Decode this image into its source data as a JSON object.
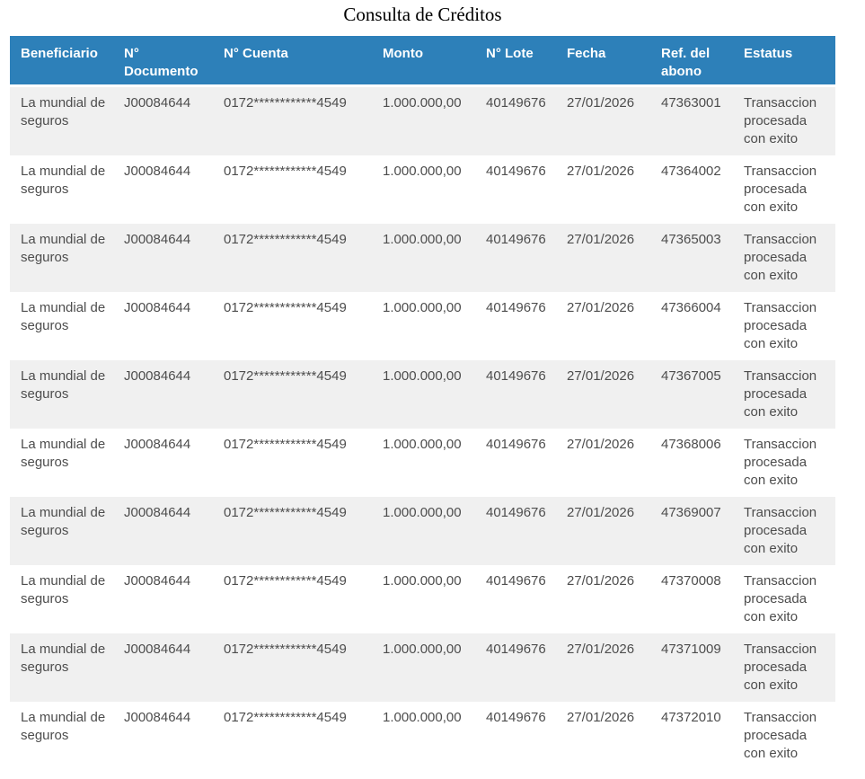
{
  "title": "Consulta de Créditos",
  "table": {
    "columns": [
      {
        "key": "beneficiario",
        "label": "Beneficiario"
      },
      {
        "key": "documento",
        "label": "N° Documento"
      },
      {
        "key": "cuenta",
        "label": "N° Cuenta"
      },
      {
        "key": "monto",
        "label": "Monto"
      },
      {
        "key": "lote",
        "label": "N° Lote"
      },
      {
        "key": "fecha",
        "label": "Fecha"
      },
      {
        "key": "ref_abono",
        "label": "Ref. del abono"
      },
      {
        "key": "estatus",
        "label": "Estatus"
      }
    ],
    "rows": [
      {
        "beneficiario": "La mundial de seguros",
        "documento": "J00084644",
        "cuenta": "0172************4549",
        "monto": "1.000.000,00",
        "lote": "40149676",
        "fecha": "27/01/2026",
        "ref_abono": "47363001",
        "estatus": "Transaccion procesada con exito"
      },
      {
        "beneficiario": "La mundial de seguros",
        "documento": "J00084644",
        "cuenta": "0172************4549",
        "monto": "1.000.000,00",
        "lote": "40149676",
        "fecha": "27/01/2026",
        "ref_abono": "47364002",
        "estatus": "Transaccion procesada con exito"
      },
      {
        "beneficiario": "La mundial de seguros",
        "documento": "J00084644",
        "cuenta": "0172************4549",
        "monto": "1.000.000,00",
        "lote": "40149676",
        "fecha": "27/01/2026",
        "ref_abono": "47365003",
        "estatus": "Transaccion procesada con exito"
      },
      {
        "beneficiario": "La mundial de seguros",
        "documento": "J00084644",
        "cuenta": "0172************4549",
        "monto": "1.000.000,00",
        "lote": "40149676",
        "fecha": "27/01/2026",
        "ref_abono": "47366004",
        "estatus": "Transaccion procesada con exito"
      },
      {
        "beneficiario": "La mundial de seguros",
        "documento": "J00084644",
        "cuenta": "0172************4549",
        "monto": "1.000.000,00",
        "lote": "40149676",
        "fecha": "27/01/2026",
        "ref_abono": "47367005",
        "estatus": "Transaccion procesada con exito"
      },
      {
        "beneficiario": "La mundial de seguros",
        "documento": "J00084644",
        "cuenta": "0172************4549",
        "monto": "1.000.000,00",
        "lote": "40149676",
        "fecha": "27/01/2026",
        "ref_abono": "47368006",
        "estatus": "Transaccion procesada con exito"
      },
      {
        "beneficiario": "La mundial de seguros",
        "documento": "J00084644",
        "cuenta": "0172************4549",
        "monto": "1.000.000,00",
        "lote": "40149676",
        "fecha": "27/01/2026",
        "ref_abono": "47369007",
        "estatus": "Transaccion procesada con exito"
      },
      {
        "beneficiario": "La mundial de seguros",
        "documento": "J00084644",
        "cuenta": "0172************4549",
        "monto": "1.000.000,00",
        "lote": "40149676",
        "fecha": "27/01/2026",
        "ref_abono": "47370008",
        "estatus": "Transaccion procesada con exito"
      },
      {
        "beneficiario": "La mundial de seguros",
        "documento": "J00084644",
        "cuenta": "0172************4549",
        "monto": "1.000.000,00",
        "lote": "40149676",
        "fecha": "27/01/2026",
        "ref_abono": "47371009",
        "estatus": "Transaccion procesada con exito"
      },
      {
        "beneficiario": "La mundial de seguros",
        "documento": "J00084644",
        "cuenta": "0172************4549",
        "monto": "1.000.000,00",
        "lote": "40149676",
        "fecha": "27/01/2026",
        "ref_abono": "47372010",
        "estatus": "Transaccion procesada con exito"
      }
    ]
  },
  "colors": {
    "header_bg": "#2d80b9",
    "header_text": "#ffffff",
    "row_alt_bg": "#f0f0f0",
    "body_text": "#4d4d4d",
    "title_text": "#000000"
  }
}
